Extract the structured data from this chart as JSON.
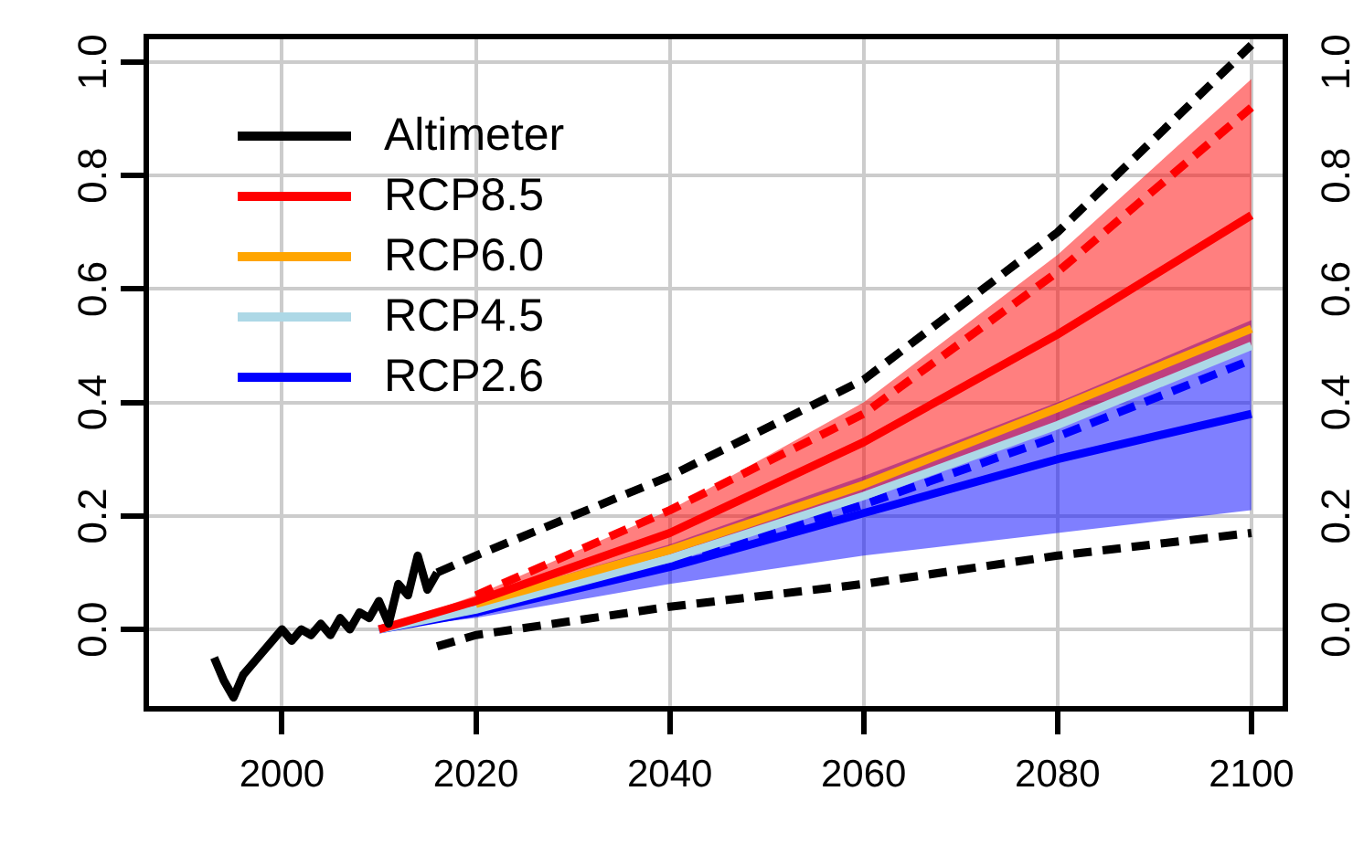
{
  "chart_data": {
    "type": "line",
    "xlim": [
      1986,
      2103.5
    ],
    "xticks": [
      2000,
      2020,
      2040,
      2060,
      2080,
      2100
    ],
    "ylim": [
      -0.14,
      1.045
    ],
    "yticks": [
      {
        "value": 0,
        "label": "0.0"
      },
      {
        "value": 0.2,
        "label": "0.2"
      },
      {
        "value": 0.4,
        "label": "0.4"
      },
      {
        "value": 0.6,
        "label": "0.6"
      },
      {
        "value": 0.8,
        "label": "0.8"
      },
      {
        "value": 1,
        "label": "1.0"
      }
    ],
    "y2lim": [
      -0.14,
      1.045
    ],
    "y2ticks": [
      {
        "value": 0,
        "label": "0.0"
      },
      {
        "value": 0.2,
        "label": "0.2"
      },
      {
        "value": 0.4,
        "label": "0.4"
      },
      {
        "value": 0.6,
        "label": "0.6"
      },
      {
        "value": 0.8,
        "label": "0.8"
      },
      {
        "value": 1,
        "label": "1.0"
      }
    ],
    "grid": true,
    "legend": "top left",
    "marker": "none",
    "series": [
      {
        "name": "Altimeter",
        "color": "#000000",
        "x": [
          1993,
          1994,
          1995,
          1996,
          1997,
          1998,
          1999,
          2000,
          2001,
          2002,
          2003,
          2004,
          2005,
          2006,
          2007,
          2008,
          2009,
          2010,
          2011,
          2012,
          2013,
          2014,
          2015,
          2016
        ],
        "values": [
          -0.05,
          -0.09,
          -0.12,
          -0.08,
          -0.06,
          -0.04,
          -0.02,
          0,
          -0.02,
          0,
          -0.01,
          0.01,
          -0.01,
          0.02,
          0,
          0.03,
          0.02,
          0.05,
          0.01,
          0.08,
          0.06,
          0.13,
          0.07,
          0.1
        ]
      },
      {
        "name": "RCP8.5",
        "color": "#ff0000",
        "x": [
          2010,
          2020,
          2040,
          2060,
          2080,
          2100
        ],
        "values": [
          0,
          0.05,
          0.17,
          0.33,
          0.52,
          0.73
        ],
        "lower": [
          0,
          0.04,
          0.13,
          0.23,
          0.36,
          0.5
        ],
        "upper": [
          0,
          0.06,
          0.21,
          0.4,
          0.66,
          0.97
        ]
      },
      {
        "name": "RCP6.0",
        "color": "#ffa500",
        "x": [
          2020,
          2040,
          2060,
          2080,
          2100
        ],
        "values": [
          0.045,
          0.14,
          0.255,
          0.39,
          0.53
        ]
      },
      {
        "name": "RCP4.5",
        "color": "#add8e6",
        "x": [
          2010,
          2020,
          2040,
          2060,
          2080,
          2100
        ],
        "values": [
          0,
          0.035,
          0.125,
          0.235,
          0.36,
          0.5
        ]
      },
      {
        "name": "RCP2.6",
        "color": "#0000ff",
        "x": [
          2010,
          2020,
          2040,
          2060,
          2080,
          2100
        ],
        "values": [
          0,
          0.03,
          0.11,
          0.205,
          0.3,
          0.38
        ],
        "lower": [
          0,
          0.02,
          0.08,
          0.13,
          0.17,
          0.21
        ],
        "upper": [
          0,
          0.05,
          0.15,
          0.27,
          0.4,
          0.545
        ]
      },
      {
        "color": "#ff0000",
        "line_style": "dashed",
        "x": [
          2020,
          2040,
          2060,
          2080,
          2100
        ],
        "values": [
          0.06,
          0.21,
          0.38,
          0.63,
          0.92
        ]
      },
      {
        "color": "#0000ff",
        "line_style": "dashed",
        "x": [
          2020,
          2040,
          2060,
          2080,
          2100
        ],
        "values": [
          0.03,
          0.12,
          0.22,
          0.34,
          0.475
        ]
      },
      {
        "color": "#000000",
        "line_style": "dashed",
        "x": [
          2016,
          2020,
          2040,
          2060,
          2080,
          2100
        ],
        "values": [
          0.1,
          0.13,
          0.27,
          0.44,
          0.7,
          1.03
        ]
      },
      {
        "color": "#000000",
        "line_style": "dashed",
        "x": [
          2016,
          2020,
          2040,
          2060,
          2080,
          2100
        ],
        "values": [
          -0.03,
          -0.01,
          0.04,
          0.08,
          0.13,
          0.17
        ]
      }
    ]
  }
}
